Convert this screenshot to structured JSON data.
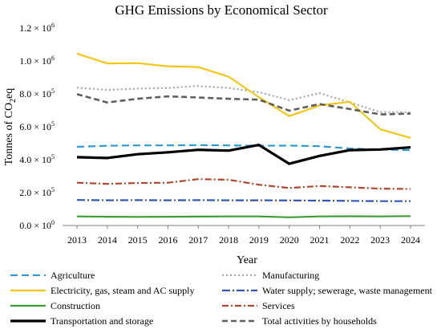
{
  "chart_data": {
    "type": "line",
    "title": "GHG Emissions by Economical Sector",
    "xlabel": "Year",
    "ylabel_main": "Tonnes of CO",
    "ylabel_sub": "2",
    "ylabel_tail": "eq",
    "x": [
      2013,
      2014,
      2015,
      2016,
      2017,
      2018,
      2019,
      2020,
      2021,
      2022,
      2023,
      2024
    ],
    "ylim": [
      0,
      1200000
    ],
    "yticks": [
      {
        "value": 0,
        "mantissa": "0.0",
        "exp": "0"
      },
      {
        "value": 200000,
        "mantissa": "2.0",
        "exp": "5"
      },
      {
        "value": 400000,
        "mantissa": "4.0",
        "exp": "5"
      },
      {
        "value": 600000,
        "mantissa": "6.0",
        "exp": "5"
      },
      {
        "value": 800000,
        "mantissa": "8.0",
        "exp": "5"
      },
      {
        "value": 1000000,
        "mantissa": "1.0",
        "exp": "6"
      },
      {
        "value": 1200000,
        "mantissa": "1.2",
        "exp": "6"
      }
    ],
    "grid": false,
    "legend_position": "bottom",
    "series": [
      {
        "name": "Agriculture",
        "color": "#2e9ad6",
        "dash": "9 5",
        "width": 2.2,
        "values": [
          478000,
          485000,
          487000,
          487000,
          489000,
          487000,
          485000,
          486000,
          482000,
          468000,
          462000,
          458000
        ]
      },
      {
        "name": "Manufacturing",
        "color": "#a6a6a6",
        "dash": "2 3",
        "width": 2.2,
        "values": [
          838000,
          824000,
          832000,
          836000,
          848000,
          836000,
          810000,
          762000,
          805000,
          748000,
          690000,
          688000
        ]
      },
      {
        "name": "Electricity, gas, steam and AC supply",
        "color": "#f5c518",
        "dash": "",
        "width": 2.2,
        "values": [
          1045000,
          985000,
          987000,
          968000,
          963000,
          905000,
          780000,
          665000,
          730000,
          752000,
          585000,
          532000
        ]
      },
      {
        "name": "Water supply; sewerage, waste management",
        "color": "#2f55b8",
        "dash": "10 3 2 3",
        "width": 2.2,
        "values": [
          155000,
          153000,
          154000,
          153000,
          154000,
          153000,
          153000,
          152000,
          151000,
          150000,
          148000,
          148000
        ]
      },
      {
        "name": "Construction",
        "color": "#3d9c37",
        "dash": "",
        "width": 2.2,
        "values": [
          55000,
          53000,
          52000,
          53000,
          54000,
          55000,
          55000,
          50000,
          55000,
          56000,
          55000,
          57000
        ]
      },
      {
        "name": "Services",
        "color": "#b5462a",
        "dash": "8 3 2 3",
        "width": 2.2,
        "values": [
          260000,
          253000,
          258000,
          260000,
          282000,
          278000,
          248000,
          228000,
          240000,
          232000,
          224000,
          222000
        ]
      },
      {
        "name": "Transportation and storage",
        "color": "#000000",
        "dash": "",
        "width": 3.2,
        "values": [
          415000,
          410000,
          433000,
          445000,
          460000,
          455000,
          490000,
          375000,
          423000,
          458000,
          462000,
          475000
        ]
      },
      {
        "name": "Total activities by households",
        "color": "#5f5f5f",
        "dash": "7 4",
        "width": 2.6,
        "values": [
          798000,
          748000,
          770000,
          785000,
          778000,
          770000,
          765000,
          698000,
          738000,
          708000,
          675000,
          680000
        ]
      }
    ]
  }
}
